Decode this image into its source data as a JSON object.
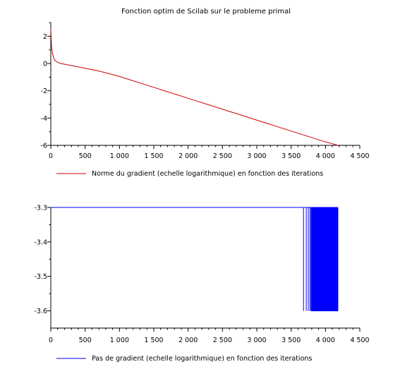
{
  "chart_data": [
    {
      "type": "line",
      "title": "Fonction optim de Scilab sur le probleme primal",
      "xlim": [
        0,
        4500
      ],
      "ylim": [
        -6,
        3
      ],
      "xticks": [
        0,
        500,
        1000,
        1500,
        2000,
        2500,
        3000,
        3500,
        4000,
        4500
      ],
      "xtick_labels": [
        "0",
        "500",
        "1 000",
        "1 500",
        "2 000",
        "2 500",
        "3 000",
        "3 500",
        "4 000",
        "4 500"
      ],
      "yticks": [
        -6,
        -4,
        -2,
        0,
        2
      ],
      "ytick_labels": [
        "-6",
        "-4",
        "-2",
        "0",
        "2"
      ],
      "legend": "bottom-left",
      "grid": false,
      "series": [
        {
          "name": "Norme du gradient (echelle logarithmique) en fonction des iterations",
          "color": "#cc0000",
          "x": [
            0,
            5,
            10,
            20,
            30,
            40,
            50,
            60,
            80,
            100,
            150,
            200,
            300,
            500,
            700,
            1000,
            1500,
            2000,
            2500,
            3000,
            3500,
            4000,
            4100,
            4180
          ],
          "y": [
            2.6,
            1.9,
            1.3,
            0.9,
            0.62,
            0.45,
            0.33,
            0.25,
            0.14,
            0.08,
            0.0,
            -0.05,
            -0.15,
            -0.35,
            -0.55,
            -0.95,
            -1.75,
            -2.55,
            -3.35,
            -4.15,
            -4.95,
            -5.75,
            -5.88,
            -6.0
          ]
        }
      ]
    },
    {
      "type": "line",
      "title": "",
      "xlim": [
        0,
        4500
      ],
      "ylim": [
        -3.65,
        -3.3
      ],
      "xticks": [
        0,
        500,
        1000,
        1500,
        2000,
        2500,
        3000,
        3500,
        4000,
        4500
      ],
      "xtick_labels": [
        "0",
        "500",
        "1 000",
        "1 500",
        "2 000",
        "2 500",
        "3 000",
        "3 500",
        "4 000",
        "4 500"
      ],
      "yticks": [
        -3.3,
        -3.4,
        -3.5,
        -3.6
      ],
      "ytick_labels": [
        "-3.3",
        "-3.4",
        "-3.5",
        "-3.6"
      ],
      "legend": "bottom-left",
      "grid": false,
      "series": [
        {
          "name": "Pas de gradient (echelle logarithmique) en fonction des iterations",
          "color": "#0000ff",
          "baseline": -3.3,
          "flat_until": 3680,
          "spike_value": -3.6,
          "spikes_at": [
            3680,
            3720,
            3750,
            3775,
            3795,
            3815,
            3835,
            3855,
            3870,
            3885,
            3900,
            3915,
            3930,
            3945,
            3960,
            3975,
            3990,
            4005,
            4020,
            4035,
            4050,
            4065,
            4080,
            4095,
            4110,
            4125,
            4140,
            4155,
            4170,
            4180
          ],
          "x_end": 4180
        }
      ]
    }
  ]
}
